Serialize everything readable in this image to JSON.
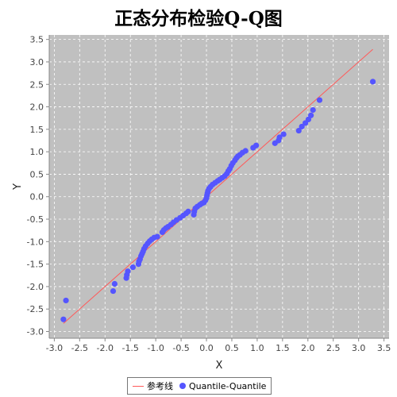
{
  "chart_data": {
    "type": "scatter",
    "title": "正态分布检验Q-Q图",
    "xlabel": "X",
    "ylabel": "Y",
    "xlim": [
      -3.1,
      3.6
    ],
    "ylim": [
      -3.15,
      3.6
    ],
    "grid": true,
    "xticks": [
      -3.0,
      -2.5,
      -2.0,
      -1.5,
      -1.0,
      -0.5,
      0.0,
      0.5,
      1.0,
      1.5,
      2.0,
      2.5,
      3.0,
      3.5
    ],
    "yticks": [
      -3.0,
      -2.5,
      -2.0,
      -1.5,
      -1.0,
      -0.5,
      0.0,
      0.5,
      1.0,
      1.5,
      2.0,
      2.5,
      3.0,
      3.5
    ],
    "legend_position": "bottom-center",
    "series": [
      {
        "name": "参考线",
        "kind": "line",
        "color": "#ff5a5a",
        "points": [
          [
            -2.82,
            -2.82
          ],
          [
            3.28,
            3.28
          ]
        ]
      },
      {
        "name": "Quantile-Quantile",
        "kind": "scatter",
        "color": "#5555ff",
        "points": [
          [
            -2.82,
            -2.73
          ],
          [
            -2.77,
            -2.31
          ],
          [
            -1.84,
            -2.1
          ],
          [
            -1.81,
            -1.94
          ],
          [
            -1.58,
            -1.81
          ],
          [
            -1.57,
            -1.74
          ],
          [
            -1.55,
            -1.66
          ],
          [
            -1.45,
            -1.57
          ],
          [
            -1.34,
            -1.5
          ],
          [
            -1.33,
            -1.44
          ],
          [
            -1.31,
            -1.39
          ],
          [
            -1.29,
            -1.32
          ],
          [
            -1.27,
            -1.27
          ],
          [
            -1.25,
            -1.22
          ],
          [
            -1.23,
            -1.16
          ],
          [
            -1.2,
            -1.1
          ],
          [
            -1.16,
            -1.04
          ],
          [
            -1.12,
            -0.99
          ],
          [
            -1.08,
            -0.95
          ],
          [
            -1.03,
            -0.91
          ],
          [
            -0.97,
            -0.89
          ],
          [
            -0.87,
            -0.79
          ],
          [
            -0.84,
            -0.74
          ],
          [
            -0.8,
            -0.7
          ],
          [
            -0.76,
            -0.67
          ],
          [
            -0.7,
            -0.62
          ],
          [
            -0.65,
            -0.57
          ],
          [
            -0.59,
            -0.52
          ],
          [
            -0.52,
            -0.47
          ],
          [
            -0.46,
            -0.42
          ],
          [
            -0.4,
            -0.37
          ],
          [
            -0.36,
            -0.33
          ],
          [
            -0.25,
            -0.4
          ],
          [
            -0.24,
            -0.33
          ],
          [
            -0.22,
            -0.26
          ],
          [
            -0.18,
            -0.22
          ],
          [
            -0.13,
            -0.18
          ],
          [
            -0.09,
            -0.15
          ],
          [
            -0.05,
            -0.13
          ],
          [
            -0.02,
            -0.08
          ],
          [
            0.0,
            -0.03
          ],
          [
            0.01,
            0.03
          ],
          [
            0.02,
            0.08
          ],
          [
            0.03,
            0.13
          ],
          [
            0.05,
            0.18
          ],
          [
            0.08,
            0.22
          ],
          [
            0.12,
            0.27
          ],
          [
            0.17,
            0.31
          ],
          [
            0.22,
            0.35
          ],
          [
            0.26,
            0.38
          ],
          [
            0.31,
            0.42
          ],
          [
            0.36,
            0.46
          ],
          [
            0.4,
            0.51
          ],
          [
            0.43,
            0.57
          ],
          [
            0.46,
            0.62
          ],
          [
            0.49,
            0.69
          ],
          [
            0.52,
            0.75
          ],
          [
            0.56,
            0.81
          ],
          [
            0.59,
            0.86
          ],
          [
            0.62,
            0.9
          ],
          [
            0.66,
            0.93
          ],
          [
            0.71,
            0.98
          ],
          [
            0.77,
            1.02
          ],
          [
            0.92,
            1.09
          ],
          [
            0.98,
            1.14
          ],
          [
            1.35,
            1.19
          ],
          [
            1.42,
            1.25
          ],
          [
            1.44,
            1.32
          ],
          [
            1.52,
            1.39
          ],
          [
            1.82,
            1.47
          ],
          [
            1.88,
            1.56
          ],
          [
            1.95,
            1.64
          ],
          [
            2.01,
            1.72
          ],
          [
            2.06,
            1.81
          ],
          [
            2.1,
            1.93
          ],
          [
            2.23,
            2.15
          ],
          [
            3.28,
            2.56
          ]
        ]
      }
    ]
  },
  "legend": {
    "line_label": "参考线",
    "dots_label": "Quantile-Quantile"
  },
  "colors": {
    "plot_background": "#c0c0c0",
    "grid": "#ffffff",
    "axis": "#888888"
  }
}
